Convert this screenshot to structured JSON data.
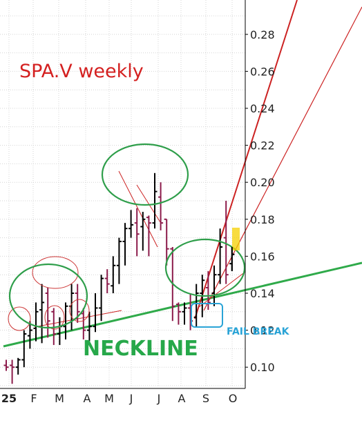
{
  "chart_data": {
    "type": "bar",
    "title": "SPA.V  weekly",
    "ylim": [
      0.09,
      0.29
    ],
    "y_axis_side": "right",
    "y_ticks": [
      "0.28",
      "0.26",
      "0.24",
      "0.22",
      "0.20",
      "0.18",
      "0.16",
      "0.14",
      "0.12",
      "0.10"
    ],
    "y_tick_values": [
      0.28,
      0.26,
      0.24,
      0.22,
      0.2,
      0.18,
      0.16,
      0.14,
      0.12,
      0.1
    ],
    "x_ticks": [
      "25",
      "F",
      "M",
      "A",
      "M",
      "J",
      "J",
      "A",
      "S",
      "O"
    ],
    "grid": true,
    "colors": {
      "up": "#000000",
      "down": "#8b1a4a",
      "neckline": "#2faa4a",
      "trend": "#cc2222",
      "circle": "#2e9e4a",
      "small_circle": "#cc3333",
      "box": "#29a3d6",
      "highlight": "#f5d000"
    },
    "series": [
      {
        "values": [
          {
            "o": 0.101,
            "h": 0.104,
            "l": 0.098,
            "c": 0.1
          },
          {
            "o": 0.101,
            "h": 0.104,
            "l": 0.091,
            "c": 0.1
          },
          {
            "o": 0.1,
            "h": 0.105,
            "l": 0.096,
            "c": 0.104
          },
          {
            "o": 0.104,
            "h": 0.12,
            "l": 0.1,
            "c": 0.118
          },
          {
            "o": 0.117,
            "h": 0.125,
            "l": 0.11,
            "c": 0.12
          },
          {
            "o": 0.121,
            "h": 0.135,
            "l": 0.114,
            "c": 0.13
          },
          {
            "o": 0.131,
            "h": 0.145,
            "l": 0.113,
            "c": 0.135
          },
          {
            "o": 0.14,
            "h": 0.143,
            "l": 0.116,
            "c": 0.125
          },
          {
            "o": 0.13,
            "h": 0.132,
            "l": 0.112,
            "c": 0.118
          },
          {
            "o": 0.118,
            "h": 0.127,
            "l": 0.112,
            "c": 0.122
          },
          {
            "o": 0.122,
            "h": 0.135,
            "l": 0.115,
            "c": 0.133
          },
          {
            "o": 0.133,
            "h": 0.145,
            "l": 0.12,
            "c": 0.14
          },
          {
            "o": 0.14,
            "h": 0.145,
            "l": 0.124,
            "c": 0.13
          },
          {
            "o": 0.129,
            "h": 0.132,
            "l": 0.115,
            "c": 0.12
          },
          {
            "o": 0.12,
            "h": 0.13,
            "l": 0.114,
            "c": 0.122
          },
          {
            "o": 0.122,
            "h": 0.14,
            "l": 0.119,
            "c": 0.132
          },
          {
            "o": 0.132,
            "h": 0.15,
            "l": 0.125,
            "c": 0.148
          },
          {
            "o": 0.148,
            "h": 0.153,
            "l": 0.14,
            "c": 0.145
          },
          {
            "o": 0.144,
            "h": 0.16,
            "l": 0.14,
            "c": 0.155
          },
          {
            "o": 0.155,
            "h": 0.17,
            "l": 0.145,
            "c": 0.168
          },
          {
            "o": 0.168,
            "h": 0.178,
            "l": 0.155,
            "c": 0.175
          },
          {
            "o": 0.175,
            "h": 0.185,
            "l": 0.17,
            "c": 0.177
          },
          {
            "o": 0.178,
            "h": 0.186,
            "l": 0.16,
            "c": 0.172
          },
          {
            "o": 0.176,
            "h": 0.184,
            "l": 0.163,
            "c": 0.18
          },
          {
            "o": 0.181,
            "h": 0.182,
            "l": 0.16,
            "c": 0.178
          },
          {
            "o": 0.178,
            "h": 0.205,
            "l": 0.175,
            "c": 0.195
          },
          {
            "o": 0.192,
            "h": 0.2,
            "l": 0.174,
            "c": 0.178
          },
          {
            "o": 0.18,
            "h": 0.18,
            "l": 0.155,
            "c": 0.164
          },
          {
            "o": 0.164,
            "h": 0.165,
            "l": 0.125,
            "c": 0.133
          },
          {
            "o": 0.134,
            "h": 0.135,
            "l": 0.123,
            "c": 0.13
          },
          {
            "o": 0.13,
            "h": 0.135,
            "l": 0.123,
            "c": 0.132
          },
          {
            "o": 0.132,
            "h": 0.14,
            "l": 0.12,
            "c": 0.125
          },
          {
            "o": 0.127,
            "h": 0.145,
            "l": 0.122,
            "c": 0.14
          },
          {
            "o": 0.14,
            "h": 0.15,
            "l": 0.127,
            "c": 0.147
          },
          {
            "o": 0.143,
            "h": 0.152,
            "l": 0.131,
            "c": 0.135
          },
          {
            "o": 0.14,
            "h": 0.155,
            "l": 0.133,
            "c": 0.15
          },
          {
            "o": 0.15,
            "h": 0.175,
            "l": 0.145,
            "c": 0.165
          },
          {
            "o": 0.17,
            "h": 0.19,
            "l": 0.145,
            "c": 0.15
          },
          {
            "o": 0.156,
            "h": 0.165,
            "l": 0.152,
            "c": 0.161
          }
        ]
      }
    ],
    "annotations": {
      "neckline": "NECKLINE",
      "fail_break": "FAIL BREAK"
    }
  }
}
